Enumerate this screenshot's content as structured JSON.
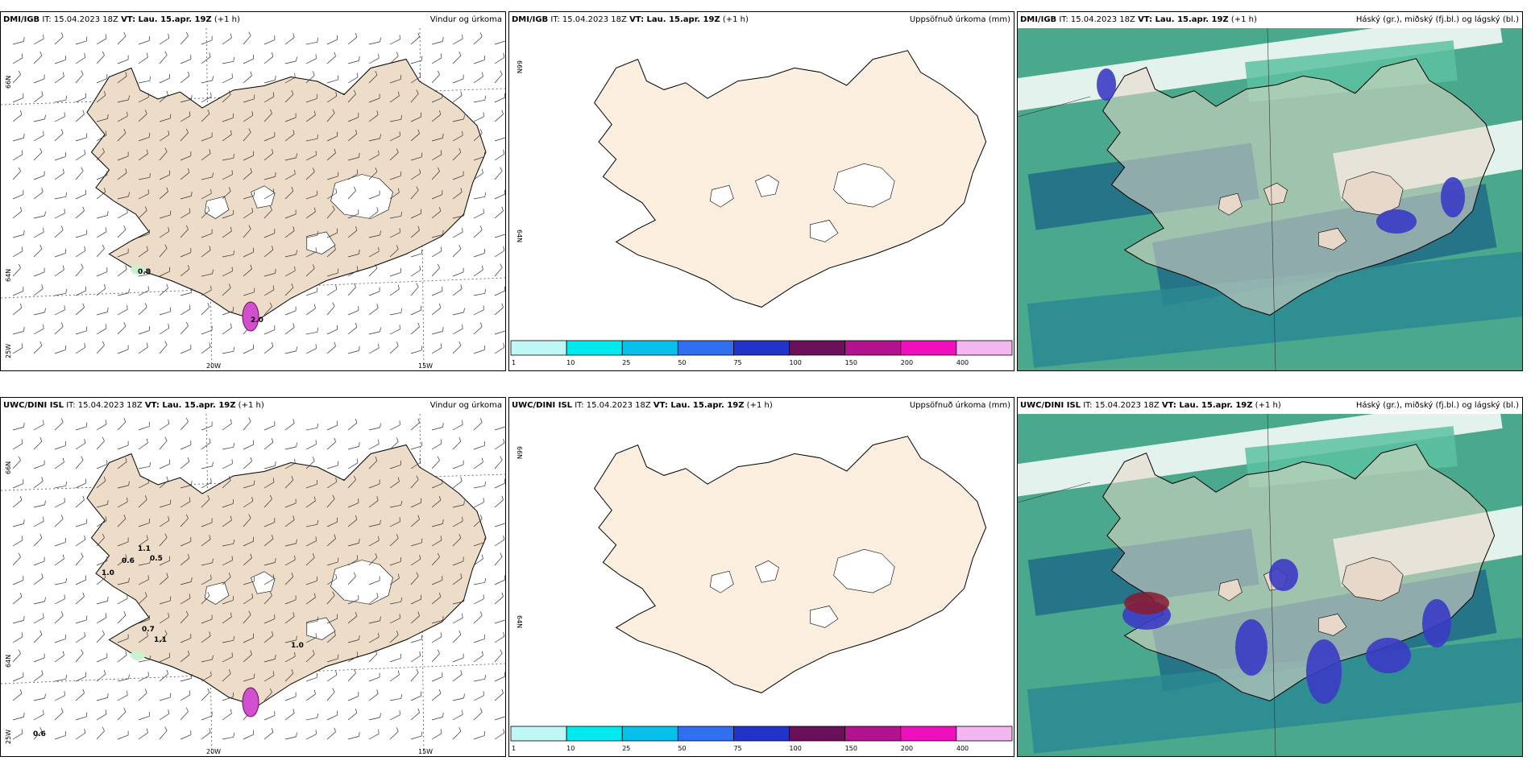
{
  "panels": [
    {
      "source": "DMI/IGB",
      "it": "IT: 15.04.2023 18Z",
      "vt_label": "VT: Lau. 15.apr. 19Z",
      "offset": "(+1 h)",
      "title": "Vindur og úrkoma",
      "kind": "wind",
      "lat_labels": [
        "66N",
        "64N",
        "25W"
      ],
      "lon_labels": [
        "20W",
        "15W"
      ],
      "precip_labels": [
        "0.8",
        "2.0"
      ]
    },
    {
      "source": "DMI/IGB",
      "it": "IT: 15.04.2023 18Z",
      "vt_label": "VT: Lau. 15.apr. 19Z",
      "offset": "(+1 h)",
      "title": "Uppsöfnuð úrkoma (mm)",
      "kind": "accum",
      "lat_labels": [
        "66N",
        "64N"
      ]
    },
    {
      "source": "DMI/IGB",
      "it": "IT: 15.04.2023 18Z",
      "vt_label": "VT: Lau. 15.apr. 19Z",
      "offset": "(+1 h)",
      "title": "Háský (gr.), miðský (fj.bl.) og lágský (bl.)",
      "kind": "cloud"
    },
    {
      "source": "UWC/DINI ISL",
      "it": "IT: 15.04.2023 18Z",
      "vt_label": "VT: Lau. 15.apr. 19Z",
      "offset": "(+1 h)",
      "title": "Vindur og úrkoma",
      "kind": "wind",
      "lat_labels": [
        "66N",
        "64N",
        "25W"
      ],
      "lon_labels": [
        "20W",
        "15W"
      ],
      "precip_labels": [
        "1.1",
        "0.6",
        "0.5",
        "1.0",
        "0.7",
        "1.1",
        "1.0",
        "0.6"
      ]
    },
    {
      "source": "UWC/DINI ISL",
      "it": "IT: 15.04.2023 18Z",
      "vt_label": "VT: Lau. 15.apr. 19Z",
      "offset": "(+1 h)",
      "title": "Uppsöfnuð úrkoma (mm)",
      "kind": "accum",
      "lat_labels": [
        "66N",
        "64N"
      ]
    },
    {
      "source": "UWC/DINI ISL",
      "it": "IT: 15.04.2023 18Z",
      "vt_label": "VT: Lau. 15.apr. 19Z",
      "offset": "(+1 h)",
      "title": "Háský (gr.), miðský (fj.bl.) og lágský (bl.)",
      "kind": "cloud"
    }
  ],
  "colorbar": {
    "colors": [
      "#bff6f6",
      "#00e9ef",
      "#06c0eb",
      "#2f6ff0",
      "#2233c8",
      "#6a0f5a",
      "#b2118f",
      "#ef0fbf",
      "#f4b6f0"
    ],
    "labels": [
      "1",
      "10",
      "25",
      "50",
      "75",
      "100",
      "150",
      "200",
      "400"
    ]
  },
  "colors": {
    "land": "#ecdcc8",
    "land_light": "#fcefe0",
    "glacier": "#ffffff",
    "cloud_high": "#4aa98c",
    "cloud_mid": "#1f6b86",
    "cloud_low": "#3b3bc4"
  }
}
